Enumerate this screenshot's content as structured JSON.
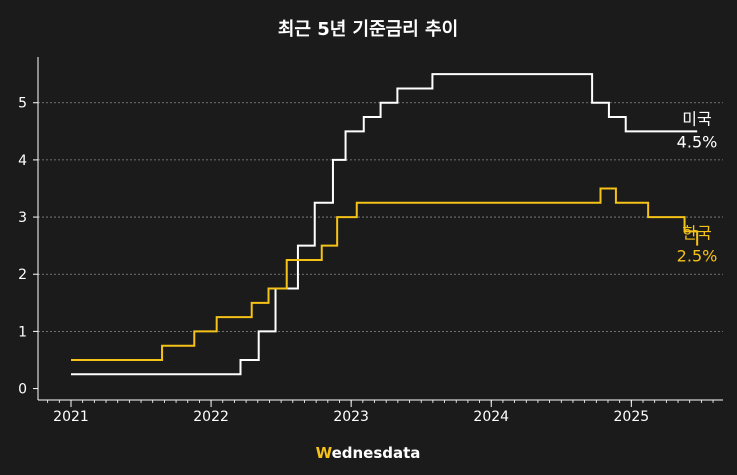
{
  "chart_data": {
    "type": "line",
    "title": "최근 5년 기준금리 추이",
    "xlim": [
      2021.0,
      2025.89
    ],
    "ylim": [
      -0.2,
      5.8
    ],
    "grid": true,
    "x_ticks": [
      {
        "value": 2021,
        "label": "2021"
      },
      {
        "value": 2022,
        "label": "2022"
      },
      {
        "value": 2023,
        "label": "2023"
      },
      {
        "value": 2024,
        "label": "2024"
      },
      {
        "value": 2025,
        "label": "2025"
      }
    ],
    "y_ticks": [
      {
        "value": 0,
        "label": "0"
      },
      {
        "value": 1,
        "label": "1"
      },
      {
        "value": 2,
        "label": "2"
      },
      {
        "value": 3,
        "label": "3"
      },
      {
        "value": 4,
        "label": "4"
      },
      {
        "value": 5,
        "label": "5"
      }
    ],
    "series": [
      {
        "name": "미국",
        "end_label": "4.5%",
        "color": "#ffffff",
        "x": [
          2021.0,
          2022.21,
          2022.34,
          2022.46,
          2022.62,
          2022.74,
          2022.87,
          2022.96,
          2023.09,
          2023.21,
          2023.33,
          2023.58,
          2024.72,
          2024.84,
          2024.96,
          2025.47
        ],
        "values": [
          0.25,
          0.5,
          1.0,
          1.75,
          2.5,
          3.25,
          4.0,
          4.5,
          4.75,
          5.0,
          5.25,
          5.5,
          5.0,
          4.75,
          4.5,
          4.5
        ]
      },
      {
        "name": "한국",
        "end_label": "2.5%",
        "color": "#f5c218",
        "x": [
          2021.0,
          2021.65,
          2021.88,
          2022.04,
          2022.29,
          2022.41,
          2022.54,
          2022.79,
          2022.9,
          2023.04,
          2024.78,
          2024.89,
          2025.12,
          2025.38,
          2025.47
        ],
        "values": [
          0.5,
          0.75,
          1.0,
          1.25,
          1.5,
          1.75,
          2.25,
          2.5,
          3.0,
          3.25,
          3.5,
          3.25,
          3.0,
          2.75,
          2.5
        ]
      }
    ]
  },
  "brand": {
    "text": "Wednesdata",
    "accent_color": "#f5c218"
  }
}
